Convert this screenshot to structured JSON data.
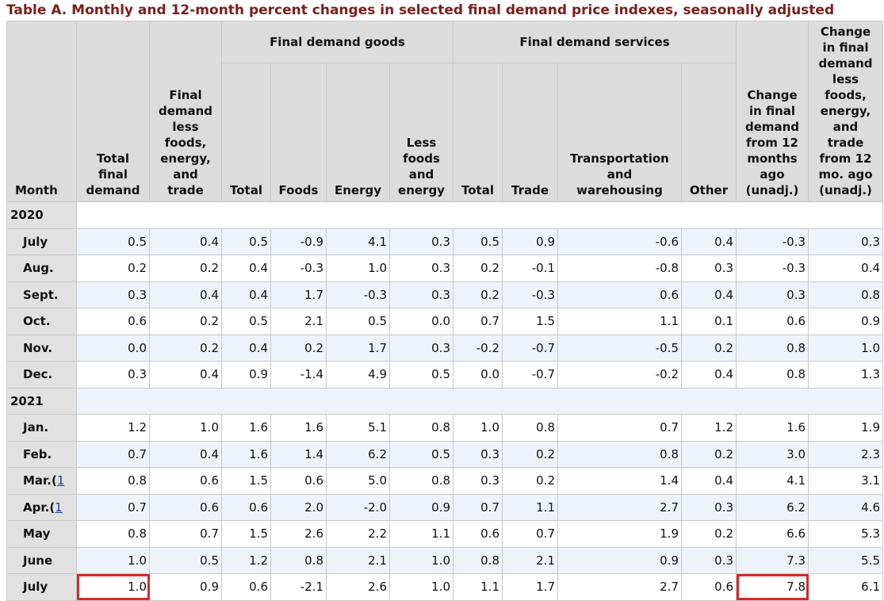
{
  "title": "Table A. Monthly and 12-month percent changes in selected final demand price indexes, seasonally adjusted",
  "headers": {
    "month": "Month",
    "total_final_demand": [
      "Total",
      "final",
      "demand"
    ],
    "fd_less": [
      "Final",
      "demand",
      "less",
      "foods,",
      "energy,",
      "and",
      "trade"
    ],
    "goods_group": "Final demand goods",
    "goods_total": "Total",
    "goods_foods": "Foods",
    "goods_energy": "Energy",
    "goods_less": [
      "Less",
      "foods",
      "and",
      "energy"
    ],
    "services_group": "Final demand services",
    "services_total": "Total",
    "services_trade": "Trade",
    "services_transport": [
      "Transportation",
      "and",
      "warehousing"
    ],
    "services_other": "Other",
    "change_12": [
      "Change",
      "in final",
      "demand",
      "from 12",
      "months",
      "ago",
      "(unadj.)"
    ],
    "change_12_less": [
      "Change",
      "in final",
      "demand",
      "less",
      "foods,",
      "energy,",
      "and",
      "trade",
      "from 12",
      "mo. ago",
      "(unadj.)"
    ]
  },
  "rows": [
    {
      "year": "2020"
    },
    {
      "month": "July",
      "v": [
        "0.5",
        "0.4",
        "0.5",
        "-0.9",
        "4.1",
        "0.3",
        "0.5",
        "0.9",
        "-0.6",
        "0.4",
        "-0.3",
        "0.3"
      ]
    },
    {
      "month": "Aug.",
      "v": [
        "0.2",
        "0.2",
        "0.4",
        "-0.3",
        "1.0",
        "0.3",
        "0.2",
        "-0.1",
        "-0.8",
        "0.3",
        "-0.3",
        "0.4"
      ]
    },
    {
      "month": "Sept.",
      "v": [
        "0.3",
        "0.4",
        "0.4",
        "1.7",
        "-0.3",
        "0.3",
        "0.2",
        "-0.3",
        "0.6",
        "0.4",
        "0.3",
        "0.8"
      ]
    },
    {
      "month": "Oct.",
      "v": [
        "0.6",
        "0.2",
        "0.5",
        "2.1",
        "0.5",
        "0.0",
        "0.7",
        "1.5",
        "1.1",
        "0.1",
        "0.6",
        "0.9"
      ]
    },
    {
      "month": "Nov.",
      "v": [
        "0.0",
        "0.2",
        "0.4",
        "0.2",
        "1.7",
        "0.3",
        "-0.2",
        "-0.7",
        "-0.5",
        "0.2",
        "0.8",
        "1.0"
      ]
    },
    {
      "month": "Dec.",
      "v": [
        "0.3",
        "0.4",
        "0.9",
        "-1.4",
        "4.9",
        "0.5",
        "0.0",
        "-0.7",
        "-0.2",
        "0.4",
        "0.8",
        "1.3"
      ]
    },
    {
      "year": "2021"
    },
    {
      "month": "Jan.",
      "v": [
        "1.2",
        "1.0",
        "1.6",
        "1.6",
        "5.1",
        "0.8",
        "1.0",
        "0.8",
        "0.7",
        "1.2",
        "1.6",
        "1.9"
      ]
    },
    {
      "month": "Feb.",
      "v": [
        "0.7",
        "0.4",
        "1.6",
        "1.4",
        "6.2",
        "0.5",
        "0.3",
        "0.2",
        "0.8",
        "0.2",
        "3.0",
        "2.3"
      ]
    },
    {
      "month": "Mar.",
      "fn": "1",
      "v": [
        "0.8",
        "0.6",
        "1.5",
        "0.6",
        "5.0",
        "0.8",
        "0.3",
        "0.2",
        "1.4",
        "0.4",
        "4.1",
        "3.1"
      ]
    },
    {
      "month": "Apr.",
      "fn": "1",
      "v": [
        "0.7",
        "0.6",
        "0.6",
        "2.0",
        "-2.0",
        "0.9",
        "0.7",
        "1.1",
        "2.7",
        "0.3",
        "6.2",
        "4.6"
      ]
    },
    {
      "month": "May",
      "v": [
        "0.8",
        "0.7",
        "1.5",
        "2.6",
        "2.2",
        "1.1",
        "0.6",
        "0.7",
        "1.9",
        "0.2",
        "6.6",
        "5.3"
      ]
    },
    {
      "month": "June",
      "v": [
        "1.0",
        "0.5",
        "1.2",
        "0.8",
        "2.1",
        "1.0",
        "0.8",
        "2.1",
        "0.9",
        "0.3",
        "7.3",
        "5.5"
      ]
    },
    {
      "month": "July",
      "v": [
        "1.0",
        "0.9",
        "0.6",
        "-2.1",
        "2.6",
        "1.0",
        "1.1",
        "1.7",
        "2.7",
        "0.6",
        "7.8",
        "6.1"
      ]
    }
  ]
}
